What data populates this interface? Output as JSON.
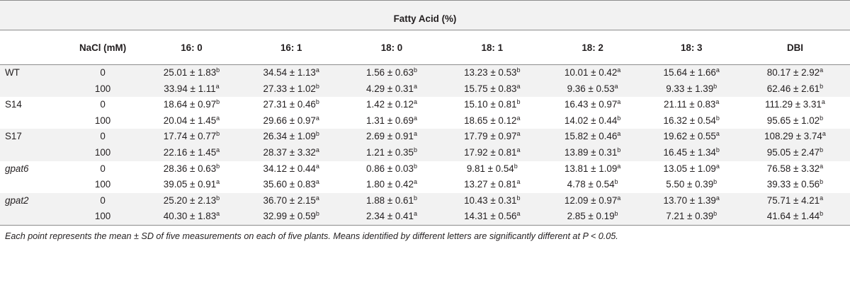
{
  "table": {
    "group_header": "Fatty Acid (%)",
    "columns": [
      "",
      "NaCl (mM)",
      "16: 0",
      "16: 1",
      "18: 0",
      "18: 1",
      "18: 2",
      "18: 3",
      "DBI"
    ],
    "rows": [
      {
        "strain": "WT",
        "italic": false,
        "nacl": "0",
        "cells": [
          [
            "25.01 ± 1.83",
            "b"
          ],
          [
            "34.54 ± 1.13",
            "a"
          ],
          [
            "1.56 ± 0.63",
            "b"
          ],
          [
            "13.23 ± 0.53",
            "b"
          ],
          [
            "10.01 ± 0.42",
            "a"
          ],
          [
            "15.64 ± 1.66",
            "a"
          ],
          [
            "80.17 ± 2.92",
            "a"
          ]
        ]
      },
      {
        "strain": "",
        "italic": false,
        "nacl": "100",
        "cells": [
          [
            "33.94 ± 1.11",
            "a"
          ],
          [
            "27.33 ± 1.02",
            "b"
          ],
          [
            "4.29 ± 0.31",
            "a"
          ],
          [
            "15.75 ± 0.83",
            "a"
          ],
          [
            "9.36 ± 0.53",
            "a"
          ],
          [
            "9.33 ± 1.39",
            "b"
          ],
          [
            "62.46 ± 2.61",
            "b"
          ]
        ]
      },
      {
        "strain": "S14",
        "italic": false,
        "nacl": "0",
        "cells": [
          [
            "18.64 ± 0.97",
            "b"
          ],
          [
            "27.31 ± 0.46",
            "b"
          ],
          [
            "1.42 ± 0.12",
            "a"
          ],
          [
            "15.10 ± 0.81",
            "b"
          ],
          [
            "16.43 ± 0.97",
            "a"
          ],
          [
            "21.11 ± 0.83",
            "a"
          ],
          [
            "111.29 ± 3.31",
            "a"
          ]
        ]
      },
      {
        "strain": "",
        "italic": false,
        "nacl": "100",
        "cells": [
          [
            "20.04 ± 1.45",
            "a"
          ],
          [
            "29.66 ± 0.97",
            "a"
          ],
          [
            "1.31 ± 0.69",
            "a"
          ],
          [
            "18.65 ± 0.12",
            "a"
          ],
          [
            "14.02 ± 0.44",
            "b"
          ],
          [
            "16.32 ± 0.54",
            "b"
          ],
          [
            "95.65 ± 1.02",
            "b"
          ]
        ]
      },
      {
        "strain": "S17",
        "italic": false,
        "nacl": "0",
        "cells": [
          [
            "17.74 ± 0.77",
            "b"
          ],
          [
            "26.34 ± 1.09",
            "b"
          ],
          [
            "2.69 ± 0.91",
            "a"
          ],
          [
            "17.79 ± 0.97",
            "a"
          ],
          [
            "15.82 ± 0.46",
            "a"
          ],
          [
            "19.62 ± 0.55",
            "a"
          ],
          [
            "108.29 ± 3.74",
            "a"
          ]
        ]
      },
      {
        "strain": "",
        "italic": false,
        "nacl": "100",
        "cells": [
          [
            "22.16 ± 1.45",
            "a"
          ],
          [
            "28.37 ± 3.32",
            "a"
          ],
          [
            "1.21 ± 0.35",
            "b"
          ],
          [
            "17.92 ± 0.81",
            "a"
          ],
          [
            "13.89 ± 0.31",
            "b"
          ],
          [
            "16.45 ± 1.34",
            "b"
          ],
          [
            "95.05 ± 2.47",
            "b"
          ]
        ]
      },
      {
        "strain": "gpat6",
        "italic": true,
        "nacl": "0",
        "cells": [
          [
            "28.36 ± 0.63",
            "b"
          ],
          [
            "34.12 ± 0.44",
            "a"
          ],
          [
            "0.86 ± 0.03",
            "b"
          ],
          [
            "9.81 ± 0.54",
            "b"
          ],
          [
            "13.81 ± 1.09",
            "a"
          ],
          [
            "13.05 ± 1.09",
            "a"
          ],
          [
            "76.58 ± 3.32",
            "a"
          ]
        ]
      },
      {
        "strain": "",
        "italic": false,
        "nacl": "100",
        "cells": [
          [
            "39.05 ± 0.91",
            "a"
          ],
          [
            "35.60 ± 0.83",
            "a"
          ],
          [
            "1.80 ± 0.42",
            "a"
          ],
          [
            "13.27 ± 0.81",
            "a"
          ],
          [
            "4.78 ± 0.54",
            "b"
          ],
          [
            "5.50 ± 0.39",
            "b"
          ],
          [
            "39.33 ± 0.56",
            "b"
          ]
        ]
      },
      {
        "strain": "gpat2",
        "italic": true,
        "nacl": "0",
        "cells": [
          [
            "25.20 ± 2.13",
            "b"
          ],
          [
            "36.70 ± 2.15",
            "a"
          ],
          [
            "1.88 ± 0.61",
            "b"
          ],
          [
            "10.43 ± 0.31",
            "b"
          ],
          [
            "12.09 ± 0.97",
            "a"
          ],
          [
            "13.70 ± 1.39",
            "a"
          ],
          [
            "75.71 ± 4.21",
            "a"
          ]
        ]
      },
      {
        "strain": "",
        "italic": false,
        "nacl": "100",
        "cells": [
          [
            "40.30 ± 1.83",
            "a"
          ],
          [
            "32.99 ± 0.59",
            "b"
          ],
          [
            "2.34 ± 0.41",
            "a"
          ],
          [
            "14.31 ± 0.56",
            "a"
          ],
          [
            "2.85 ± 0.19",
            "b"
          ],
          [
            "7.21 ± 0.39",
            "b"
          ],
          [
            "41.64 ± 1.44",
            "b"
          ]
        ]
      }
    ]
  },
  "footnote": "Each point represents the mean ± SD of five measurements on each of five plants. Means identified by different letters are significantly different at P < 0.05."
}
